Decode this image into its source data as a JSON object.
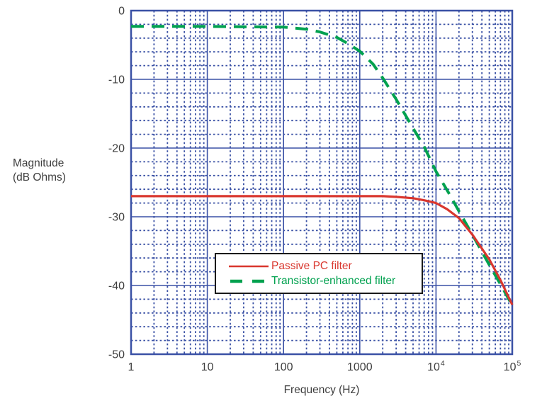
{
  "figure": {
    "ylabel_line1": "Magnitude",
    "ylabel_line2": "(dB Ohms)",
    "xlabel": "Frequency (Hz)"
  },
  "colors": {
    "grid_blue": "#3A51A5",
    "passive_red": "#D9372E",
    "transistor_green": "#00A14F",
    "axis_text": "#3E3E3E",
    "legend_border": "#1A1A1A"
  },
  "chart_data": {
    "type": "line",
    "x_scale": "log",
    "xlabel": "Frequency (Hz)",
    "ylabel": "Magnitude (dB Ohms)",
    "xlim": [
      1,
      100000
    ],
    "ylim": [
      -50,
      0
    ],
    "grid": {
      "major": "solid",
      "minor": "dotted",
      "color": "#3A51A5",
      "y_minor_step_db": 2,
      "x_minor": "log-decade 2-9"
    },
    "legend_position": "inside lower-center",
    "x_ticks": [
      {
        "f": 1,
        "base": "1",
        "sup": ""
      },
      {
        "f": 10,
        "base": "10",
        "sup": ""
      },
      {
        "f": 100,
        "base": "100",
        "sup": ""
      },
      {
        "f": 1000,
        "base": "1000",
        "sup": ""
      },
      {
        "f": 10000,
        "base": "10",
        "sup": "4"
      },
      {
        "f": 100000,
        "base": "10",
        "sup": "5"
      }
    ],
    "y_ticks": [
      {
        "v": 0,
        "label": "0"
      },
      {
        "v": -10,
        "label": "-10"
      },
      {
        "v": -20,
        "label": "-20"
      },
      {
        "v": -30,
        "label": "-30"
      },
      {
        "v": -40,
        "label": "-40"
      },
      {
        "v": -50,
        "label": "-50"
      }
    ],
    "series": [
      {
        "name": "Passive PC filter",
        "color": "#D9372E",
        "stroke": "solid",
        "stroke_width": 3.2,
        "points": [
          [
            1,
            -27
          ],
          [
            10,
            -27
          ],
          [
            100,
            -27
          ],
          [
            1000,
            -27
          ],
          [
            2000,
            -27
          ],
          [
            3000,
            -27.1
          ],
          [
            5000,
            -27.3
          ],
          [
            7000,
            -27.6
          ],
          [
            10000,
            -28
          ],
          [
            14000,
            -28.9
          ],
          [
            20000,
            -30.2
          ],
          [
            30000,
            -32.6
          ],
          [
            50000,
            -36.2
          ],
          [
            70000,
            -39.2
          ],
          [
            100000,
            -42.8
          ]
        ]
      },
      {
        "name": "Transistor-enhanced filter",
        "color": "#00A14F",
        "stroke": "dashed",
        "stroke_width": 4,
        "points": [
          [
            1,
            -2.3
          ],
          [
            10,
            -2.3
          ],
          [
            100,
            -2.4
          ],
          [
            200,
            -2.7
          ],
          [
            300,
            -3.1
          ],
          [
            500,
            -3.9
          ],
          [
            700,
            -4.8
          ],
          [
            1000,
            -5.9
          ],
          [
            1500,
            -7.8
          ],
          [
            2000,
            -9.8
          ],
          [
            3000,
            -12.9
          ],
          [
            5000,
            -17.1
          ],
          [
            7000,
            -19.8
          ],
          [
            10000,
            -23.4
          ],
          [
            15000,
            -26.7
          ],
          [
            20000,
            -29.2
          ],
          [
            30000,
            -32.6
          ],
          [
            50000,
            -37.0
          ],
          [
            70000,
            -39.8
          ],
          [
            100000,
            -42.9
          ]
        ]
      }
    ]
  }
}
